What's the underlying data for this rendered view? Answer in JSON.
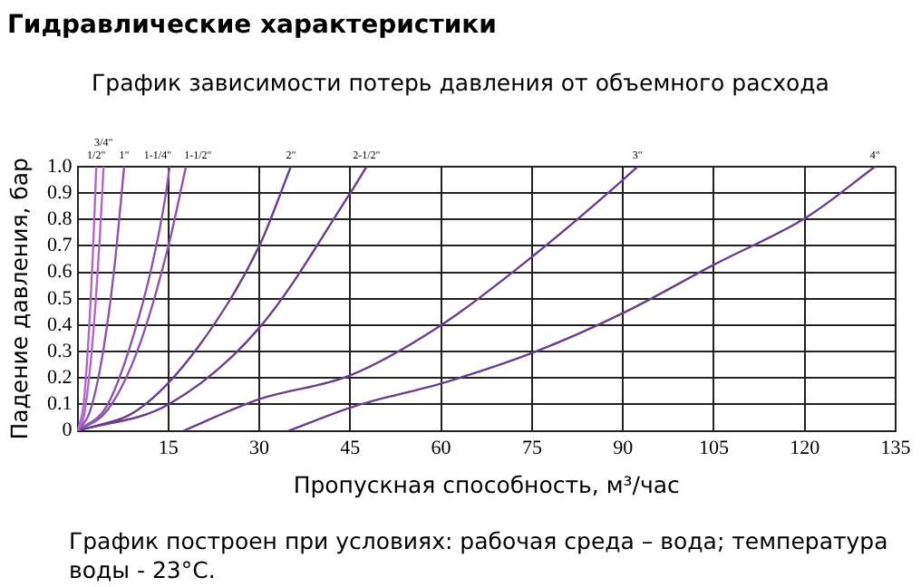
{
  "chart_data": {
    "type": "line",
    "title": "Гидравлические характеристики",
    "subtitle": "График зависимости потерь давления от объемного расхода",
    "xlabel": "Пропускная способность, м³/час",
    "ylabel": "Падение давления, бар",
    "annotations": [
      "График построен при условиях: рабочая среда – вода; температура воды - 23°C."
    ],
    "xlim": [
      0,
      135
    ],
    "ylim": [
      0,
      1
    ],
    "xticks": [
      15,
      30,
      45,
      60,
      75,
      90,
      105,
      120,
      135
    ],
    "yticks": [
      0,
      0.1,
      0.2,
      0.3,
      0.4,
      0.5,
      0.6,
      0.7,
      0.8,
      0.9,
      {
        "value": 1,
        "label": "1.0"
      }
    ],
    "grid": true,
    "legend": false,
    "marker": "none",
    "line_style": "solid",
    "series": [
      {
        "name": "1/2\"",
        "color": "#b266cc",
        "x": [
          0,
          1,
          2,
          2.5,
          3.1
        ],
        "values": [
          0,
          0.1,
          0.42,
          0.65,
          1
        ]
      },
      {
        "name": "3/4\"",
        "color": "#b266cc",
        "x": [
          0,
          1,
          2,
          3,
          3.7,
          4.3
        ],
        "values": [
          0,
          0.05,
          0.22,
          0.49,
          0.74,
          1
        ]
      },
      {
        "name": "1\"",
        "color": "#8a55aa",
        "x": [
          0,
          2,
          4,
          6,
          7.7
        ],
        "values": [
          0,
          0.07,
          0.27,
          0.6,
          1
        ]
      },
      {
        "name": "1-1/4\"",
        "color": "#8a55aa",
        "x": [
          0,
          5,
          10,
          13,
          14.6,
          15.2
        ],
        "values": [
          0,
          0.1,
          0.42,
          0.7,
          0.9,
          1
        ]
      },
      {
        "name": "1-1/2\"",
        "color": "#8a55aa",
        "x": [
          0,
          5,
          10,
          15,
          17.9
        ],
        "values": [
          0,
          0.08,
          0.31,
          0.7,
          1
        ]
      },
      {
        "name": "2\"",
        "color": "#6a3f8a",
        "x": [
          0,
          10,
          20,
          30,
          35.2
        ],
        "values": [
          0,
          0.08,
          0.32,
          0.7,
          1
        ]
      },
      {
        "name": "2-1/2\"",
        "color": "#6a3f8a",
        "x": [
          0,
          15,
          30,
          45,
          47.7
        ],
        "values": [
          0,
          0.1,
          0.39,
          0.9,
          1
        ]
      },
      {
        "name": "3\"",
        "color": "#6a3f8a",
        "x": [
          17.5,
          30,
          45,
          60,
          75.6,
          90,
          92.4
        ],
        "values": [
          0,
          0.12,
          0.21,
          0.4,
          0.67,
          0.95,
          1
        ]
      },
      {
        "name": "4\"",
        "color": "#6a3f8a",
        "x": [
          34.8,
          46,
          60.1,
          75.6,
          90.4,
          105.1,
          120.4,
          131.6
        ],
        "values": [
          0,
          0.095,
          0.18,
          0.3,
          0.45,
          0.63,
          0.81,
          1
        ]
      }
    ]
  }
}
